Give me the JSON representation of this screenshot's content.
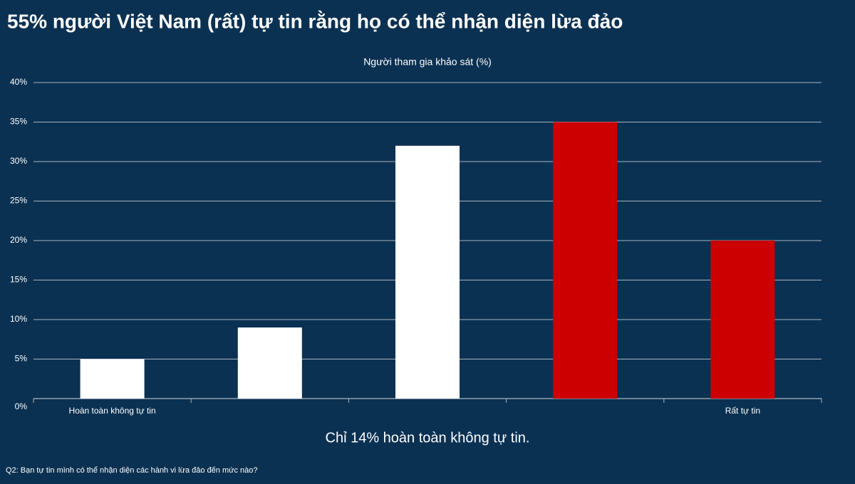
{
  "chart_data": {
    "type": "bar",
    "title": "55% người Việt Nam (rất) tự tin rằng họ có thể nhận diện lừa đảo",
    "subtitle": "Người tham gia khảo sát (%)",
    "annotation": "Chỉ 14% hoàn toàn không tự tin.",
    "footnote": "Q2: Bạn tự tin mình có thể nhận diện các hành vi lừa đảo đến mức nào?",
    "categories": [
      "Hoàn toàn không tự tin",
      null,
      null,
      null,
      "Rất tự tin"
    ],
    "values": [
      5,
      9,
      32,
      35,
      20
    ],
    "colors": [
      "#ffffff",
      "#ffffff",
      "#ffffff",
      "#cc0000",
      "#cc0000"
    ],
    "ylim": [
      0,
      40
    ],
    "yticks": [
      {
        "value": 0,
        "label": "0%"
      },
      {
        "value": 5,
        "label": "5%"
      },
      {
        "value": 10,
        "label": "10%"
      },
      {
        "value": 15,
        "label": "15%"
      },
      {
        "value": 20,
        "label": "20%"
      },
      {
        "value": 25,
        "label": "25%"
      },
      {
        "value": 30,
        "label": "30%"
      },
      {
        "value": 35,
        "label": "35%"
      },
      {
        "value": 40,
        "label": "40%"
      }
    ],
    "grid": true
  }
}
